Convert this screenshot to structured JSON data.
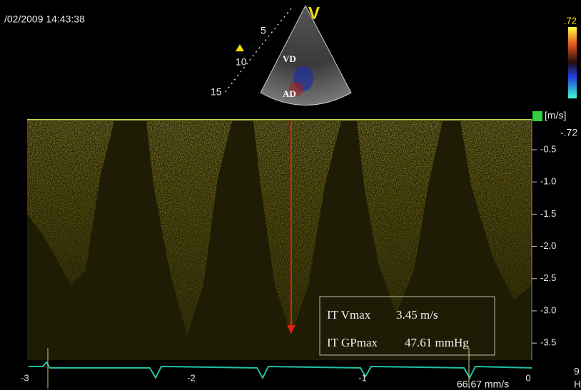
{
  "header": {
    "timestamp": "/02/2009 14:43:38"
  },
  "sector": {
    "orientation": "V",
    "depth_labels": [
      "5",
      "10",
      "15"
    ],
    "labels": [
      "VD",
      "AD"
    ]
  },
  "color_scale": {
    "top": ".72",
    "unit": "[m/s]",
    "bottom": "-.72"
  },
  "velocity_scale": [
    "-0.5",
    "-1.0",
    "-1.5",
    "-2.0",
    "-2.5",
    "-3.0",
    "-3.5"
  ],
  "measurements": [
    {
      "label": "IT Vmax",
      "value": "3.45 m/s"
    },
    {
      "label": "IT GPmax",
      "value": "47.61 mmHg"
    }
  ],
  "time_axis": {
    "labels": [
      "-3",
      "-2",
      "-1",
      "0"
    ],
    "sweep": "66.67 mm/s",
    "corner": [
      "9",
      "H"
    ]
  }
}
